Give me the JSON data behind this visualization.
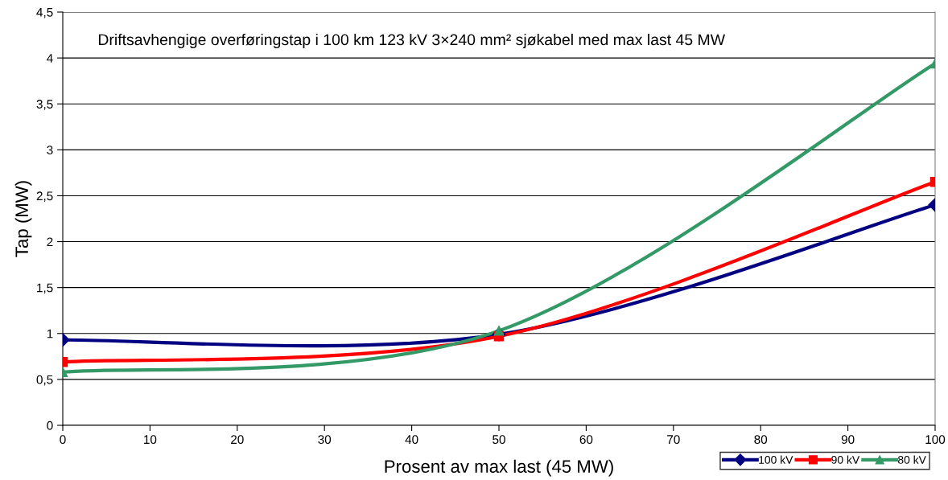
{
  "chart_data": {
    "type": "line",
    "title": "Driftsavhengige overføringstap i 100 km 123 kV 3×240 mm² sjøkabel med max last 45 MW",
    "xlabel": "Prosent av max last (45 MW)",
    "ylabel": "Tap (MW)",
    "x": [
      0,
      50,
      100
    ],
    "series": [
      {
        "name": "100 kV",
        "color": "#000080",
        "values": [
          0.93,
          0.99,
          2.4
        ],
        "marker": "diamond"
      },
      {
        "name": "90 kV",
        "color": "#ff0000",
        "values": [
          0.69,
          0.97,
          2.65
        ],
        "marker": "square"
      },
      {
        "name": "80 kV",
        "color": "#339966",
        "values": [
          0.58,
          1.03,
          3.94
        ],
        "marker": "triangle"
      }
    ],
    "xlim": [
      0,
      100
    ],
    "xticks": [
      0,
      10,
      20,
      30,
      40,
      50,
      60,
      70,
      80,
      90,
      100
    ],
    "ylim": [
      0,
      4.5
    ],
    "yticks": [
      0,
      {
        "value": 0.5,
        "label": "0,5"
      },
      1,
      {
        "value": 1.5,
        "label": "1,5"
      },
      2,
      {
        "value": 2.5,
        "label": "2,5"
      },
      3,
      {
        "value": 3.5,
        "label": "3,5"
      },
      4,
      {
        "value": 4.5,
        "label": "4,5"
      }
    ],
    "grid": "y",
    "legend": "bottom right",
    "line_style": "solid"
  }
}
